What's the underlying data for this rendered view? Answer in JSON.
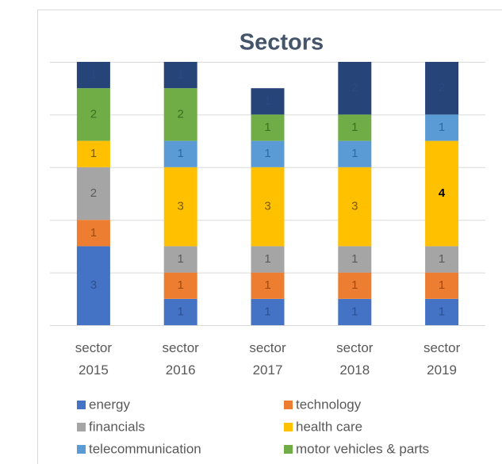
{
  "chart_data": {
    "type": "stacked_bar",
    "title": "Sectors",
    "categories": [
      "sector 2015",
      "sector 2016",
      "sector 2017",
      "sector 2018",
      "sector 2019"
    ],
    "series": [
      {
        "name": "energy",
        "color": "#4472c4",
        "values": [
          3,
          1,
          1,
          1,
          1
        ]
      },
      {
        "name": "technology",
        "color": "#ed7d31",
        "values": [
          1,
          1,
          1,
          1,
          1
        ]
      },
      {
        "name": "financials",
        "color": "#a5a5a5",
        "values": [
          2,
          1,
          1,
          1,
          1
        ]
      },
      {
        "name": "health care",
        "color": "#ffc000",
        "values": [
          1,
          3,
          3,
          3,
          4
        ]
      },
      {
        "name": "telecommunication",
        "color": "#5b9bd5",
        "values": [
          null,
          1,
          1,
          1,
          1
        ]
      },
      {
        "name": "motor vehicles & parts",
        "color": "#70ad47",
        "values": [
          2,
          2,
          1,
          1,
          null
        ]
      },
      {
        "color": "#264478",
        "values": [
          1,
          1,
          1,
          2,
          2
        ]
      }
    ],
    "ylim": [
      0,
      10
    ],
    "yticks": [
      0,
      2,
      4,
      6,
      8,
      10
    ],
    "grid": true
  }
}
